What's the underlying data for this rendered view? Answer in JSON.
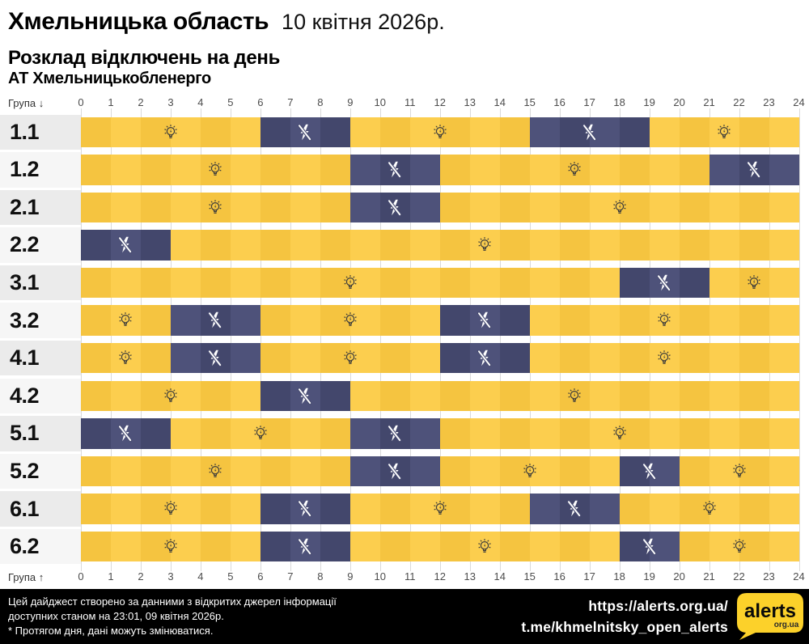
{
  "header": {
    "title": "Хмельницька область",
    "date": "10 квітня 2026р.",
    "subtitle": "Розклад відключень на день",
    "operator": "АТ Хмельницькобленерго"
  },
  "axis": {
    "group_label_top": "Група ↓",
    "group_label_bottom": "Група ↑",
    "hour_ticks": [
      0,
      1,
      2,
      3,
      4,
      5,
      6,
      7,
      8,
      9,
      10,
      11,
      12,
      13,
      14,
      15,
      16,
      17,
      18,
      19,
      20,
      21,
      22,
      23,
      24
    ]
  },
  "chart_data": {
    "type": "heatmap",
    "description": "Hourly power outage timeline per group; off_intervals are dark (no power) hours, remainder is powered (yellow)",
    "x_range": [
      0,
      24
    ],
    "rows": [
      {
        "group": "1.1",
        "off_intervals": [
          [
            6,
            9
          ],
          [
            15,
            19
          ]
        ]
      },
      {
        "group": "1.2",
        "off_intervals": [
          [
            9,
            12
          ],
          [
            21,
            24
          ]
        ]
      },
      {
        "group": "2.1",
        "off_intervals": [
          [
            9,
            12
          ]
        ]
      },
      {
        "group": "2.2",
        "off_intervals": [
          [
            0,
            3
          ]
        ]
      },
      {
        "group": "3.1",
        "off_intervals": [
          [
            18,
            21
          ]
        ]
      },
      {
        "group": "3.2",
        "off_intervals": [
          [
            3,
            6
          ],
          [
            12,
            15
          ]
        ]
      },
      {
        "group": "4.1",
        "off_intervals": [
          [
            3,
            6
          ],
          [
            12,
            15
          ]
        ]
      },
      {
        "group": "4.2",
        "off_intervals": [
          [
            6,
            9
          ]
        ]
      },
      {
        "group": "5.1",
        "off_intervals": [
          [
            0,
            3
          ],
          [
            9,
            12
          ]
        ]
      },
      {
        "group": "5.2",
        "off_intervals": [
          [
            9,
            12
          ],
          [
            18,
            20
          ]
        ]
      },
      {
        "group": "6.1",
        "off_intervals": [
          [
            6,
            9
          ],
          [
            15,
            18
          ]
        ]
      },
      {
        "group": "6.2",
        "off_intervals": [
          [
            6,
            9
          ],
          [
            18,
            20
          ]
        ]
      }
    ]
  },
  "colors": {
    "on": "#F5C440",
    "on_alt": "#FCCE4E",
    "off": "#43476C",
    "off_alt": "#4E527A",
    "label_bg_odd": "#EBEBEB",
    "label_bg_even": "#F6F6F6",
    "logo_yellow": "#FCD12A"
  },
  "footer": {
    "disclaimer_line1": "Цей дайджест створено за данними з відкритих джерел інформації",
    "disclaimer_line2": "доступних станом на 23:01, 09 квітня 2026р.",
    "disclaimer_line3": "* Протягом дня, дані можуть змінюватися.",
    "link1": "https://alerts.org.ua/",
    "link2": "t.me/khmelnitsky_open_alerts",
    "logo_text": "alerts",
    "logo_sub": "org.ua"
  }
}
